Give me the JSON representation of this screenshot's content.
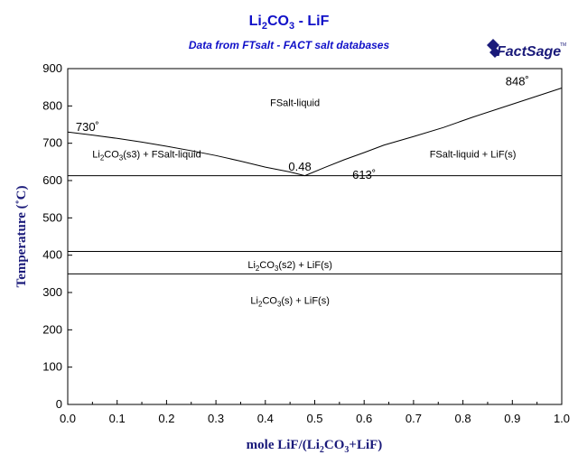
{
  "header": {
    "title_parts": [
      "Li",
      "2",
      "CO",
      "3",
      " - LiF"
    ],
    "subtitle": "Data from FTsalt - FACT salt databases",
    "logo_text": "FactSage",
    "logo_mark": "TM"
  },
  "chart_data": {
    "type": "line",
    "xlabel_parts": [
      "mole LiF/(Li",
      "2",
      "CO",
      "3",
      "+LiF)"
    ],
    "ylabel": "Temperature (˚C)",
    "xlim": [
      0,
      1
    ],
    "ylim": [
      0,
      900
    ],
    "x_ticks": [
      "0.0",
      "0.1",
      "0.2",
      "0.3",
      "0.4",
      "0.5",
      "0.6",
      "0.7",
      "0.8",
      "0.9",
      "1.0"
    ],
    "y_ticks": [
      "0",
      "100",
      "200",
      "300",
      "400",
      "500",
      "600",
      "700",
      "800",
      "900"
    ],
    "grid": false,
    "series": [
      {
        "x": [
          0.0,
          0.05,
          0.1,
          0.15,
          0.2,
          0.25,
          0.3,
          0.35,
          0.4,
          0.45,
          0.48
        ],
        "y": [
          730,
          722,
          713,
          703,
          692,
          680,
          667,
          652,
          636,
          623,
          613
        ]
      },
      {
        "x": [
          0.48,
          0.52,
          0.56,
          0.6,
          0.64,
          0.7,
          0.76,
          0.82,
          0.88,
          0.94,
          1.0
        ],
        "y": [
          613,
          635,
          656,
          675,
          695,
          718,
          742,
          770,
          796,
          822,
          848
        ]
      }
    ],
    "isotherms": [
      {
        "y": 613,
        "x": [
          0,
          1
        ]
      },
      {
        "y": 410,
        "x": [
          0,
          1
        ]
      },
      {
        "y": 350,
        "x": [
          0,
          1
        ]
      }
    ],
    "annotations": [
      {
        "text": "730˚",
        "x": 0.04,
        "y": 733
      },
      {
        "text": "848˚",
        "x": 0.91,
        "y": 855
      },
      {
        "text": "0.48",
        "x": 0.47,
        "y": 627
      },
      {
        "text": "613˚",
        "x": 0.6,
        "y": 605
      }
    ],
    "regions": [
      {
        "text": "FSalt-liquid",
        "x": 0.46,
        "y": 800
      },
      {
        "parts": [
          "Li",
          "2",
          "CO",
          "3",
          "(s3) + FSalt-liquid"
        ],
        "x": 0.16,
        "y": 662
      },
      {
        "text": "FSalt-liquid + LiF(s)",
        "x": 0.82,
        "y": 662
      },
      {
        "parts": [
          "Li",
          "2",
          "CO",
          "3",
          "(s2) + LiF(s)"
        ],
        "x": 0.45,
        "y": 365
      },
      {
        "parts": [
          "Li",
          "2",
          "CO",
          "3",
          "(s) + LiF(s)"
        ],
        "x": 0.45,
        "y": 270
      }
    ]
  }
}
